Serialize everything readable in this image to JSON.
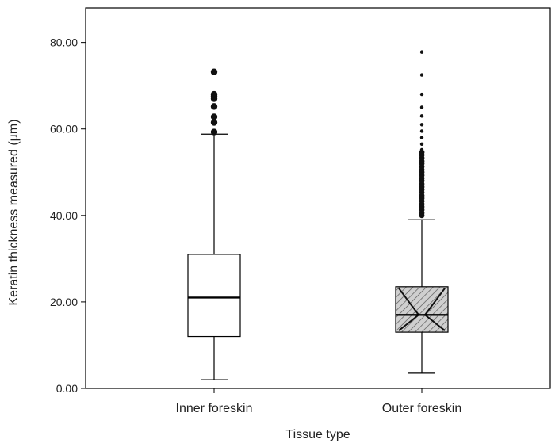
{
  "chart_data": {
    "type": "boxplot",
    "xlabel": "Tissue type",
    "ylabel": "Keratin thickness measured (µm)",
    "ylim": [
      0,
      88
    ],
    "yticks": [
      0,
      20,
      40,
      60,
      80
    ],
    "ytick_labels": [
      "0.00",
      "20.00",
      "40.00",
      "60.00",
      "80.00"
    ],
    "grid": false,
    "categories": [
      "Inner foreskin",
      "Outer foreskin"
    ],
    "boxes": [
      {
        "category": "Inner foreskin",
        "whisker_low": 2.0,
        "q1": 12.0,
        "median": 21.0,
        "q3": 31.0,
        "whisker_high": 58.8,
        "fill": "#ffffff",
        "pattern": "none",
        "outliers": [
          59.3,
          61.5,
          62.8,
          65.2,
          67.0,
          67.6,
          68.0,
          73.2
        ]
      },
      {
        "category": "Outer foreskin",
        "whisker_low": 3.5,
        "q1": 13.0,
        "median": 17.0,
        "q3": 23.5,
        "whisker_high": 39.0,
        "fill": "#bbbbbb",
        "pattern": "hatched",
        "outliers": [
          40.0,
          40.6,
          41.3,
          42.0,
          42.6,
          43.3,
          44.0,
          44.6,
          45.3,
          46.0,
          46.6,
          47.3,
          48.0,
          48.6,
          49.3,
          50.0,
          50.6,
          51.3,
          52.0,
          52.6,
          53.3,
          54.0,
          54.6,
          55.2,
          56.5,
          58.0,
          59.5,
          61.0,
          63.0,
          65.0,
          68.0,
          72.5,
          77.8
        ]
      }
    ]
  }
}
